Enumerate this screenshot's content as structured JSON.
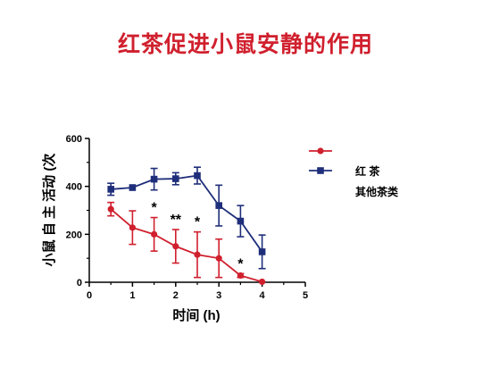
{
  "slide": {
    "title": "红茶促进小鼠安静的作用"
  },
  "chart_data": {
    "type": "line",
    "xlabel": "时间 (h)",
    "ylabel": "小鼠 自 主 活动 (次",
    "xlim": [
      0,
      5
    ],
    "ylim": [
      0,
      600
    ],
    "xticks": [
      "0",
      "1",
      "2",
      "3",
      "4",
      "5"
    ],
    "yticks": [
      "0",
      "200",
      "400",
      "600"
    ],
    "grid": false,
    "legend_position": "top-right",
    "series": [
      {
        "name": "红 茶",
        "color": "#d0202e",
        "marker": "circle",
        "x": [
          0.5,
          1.0,
          1.5,
          2.0,
          2.5,
          3.0,
          3.5,
          4.0
        ],
        "values": [
          305,
          228,
          200,
          150,
          115,
          100,
          28,
          2
        ],
        "errors": [
          28,
          70,
          70,
          70,
          95,
          80,
          8,
          0
        ]
      },
      {
        "name": "其他茶类",
        "color": "#1f2e7a",
        "marker": "square",
        "x": [
          0.5,
          1.0,
          1.5,
          2.0,
          2.5,
          3.0,
          3.5,
          4.0
        ],
        "values": [
          388,
          395,
          430,
          432,
          445,
          320,
          255,
          127
        ],
        "errors": [
          25,
          0,
          45,
          25,
          35,
          85,
          65,
          70
        ]
      }
    ],
    "annotations": [
      {
        "x": 1.5,
        "text": "*"
      },
      {
        "x": 2.0,
        "text": "**"
      },
      {
        "x": 2.5,
        "text": "*"
      },
      {
        "x": 3.5,
        "text": "*"
      }
    ]
  }
}
